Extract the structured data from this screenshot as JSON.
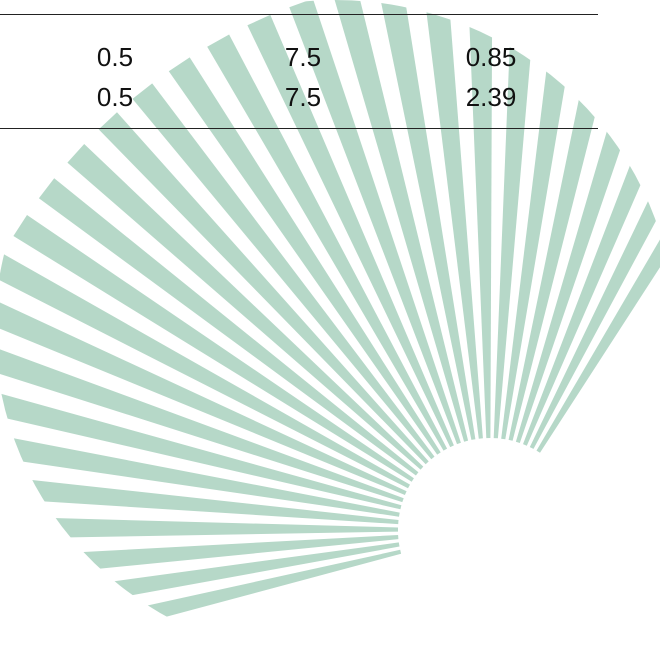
{
  "table": {
    "rows": [
      [
        "0.5",
        "7.5",
        "0.85"
      ],
      [
        "0.5",
        "7.5",
        "2.39"
      ]
    ]
  },
  "decoration": {
    "shape": "radiating wedge burst",
    "color": "#b6d8c8"
  }
}
